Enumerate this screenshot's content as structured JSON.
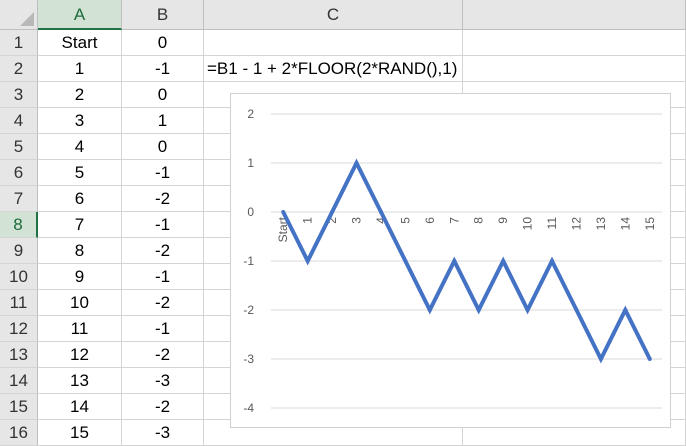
{
  "columns": [
    {
      "name": "A",
      "selected": true
    },
    {
      "name": "B",
      "selected": false
    },
    {
      "name": "C",
      "selected": false
    },
    {
      "name": "",
      "selected": false
    }
  ],
  "rows": [
    {
      "num": "1",
      "a": "Start",
      "b": "0"
    },
    {
      "num": "2",
      "a": "1",
      "b": "-1"
    },
    {
      "num": "3",
      "a": "2",
      "b": "0"
    },
    {
      "num": "4",
      "a": "3",
      "b": "1"
    },
    {
      "num": "5",
      "a": "4",
      "b": "0"
    },
    {
      "num": "6",
      "a": "5",
      "b": "-1"
    },
    {
      "num": "7",
      "a": "6",
      "b": "-2"
    },
    {
      "num": "8",
      "a": "7",
      "b": "-1"
    },
    {
      "num": "9",
      "a": "8",
      "b": "-2"
    },
    {
      "num": "10",
      "a": "9",
      "b": "-1"
    },
    {
      "num": "11",
      "a": "10",
      "b": "-2"
    },
    {
      "num": "12",
      "a": "11",
      "b": "-1"
    },
    {
      "num": "13",
      "a": "12",
      "b": "-2"
    },
    {
      "num": "14",
      "a": "13",
      "b": "-3"
    },
    {
      "num": "15",
      "a": "14",
      "b": "-2"
    },
    {
      "num": "16",
      "a": "15",
      "b": "-3"
    }
  ],
  "selected_row": "8",
  "formula_text": "=B1 - 1 + 2*FLOOR(2*RAND(),1)",
  "colors": {
    "line": "#4472c4",
    "selected_header_text": "#1e6b3a",
    "selection_accent": "#217346",
    "gridline": "#d9d9d9"
  },
  "chart_data": {
    "type": "line",
    "categories": [
      "Start",
      "1",
      "2",
      "3",
      "4",
      "5",
      "6",
      "7",
      "8",
      "9",
      "10",
      "11",
      "12",
      "13",
      "14",
      "15"
    ],
    "series": [
      {
        "values": [
          0,
          -1,
          0,
          1,
          0,
          -1,
          -2,
          -1,
          -2,
          -1,
          -2,
          -1,
          -2,
          -3,
          -2,
          -3
        ]
      }
    ],
    "yticks": [
      "2",
      "1",
      "0",
      "-1",
      "-2",
      "-3",
      "-4"
    ],
    "ylim": [
      -4,
      2
    ],
    "grid": true,
    "legend": "none"
  }
}
